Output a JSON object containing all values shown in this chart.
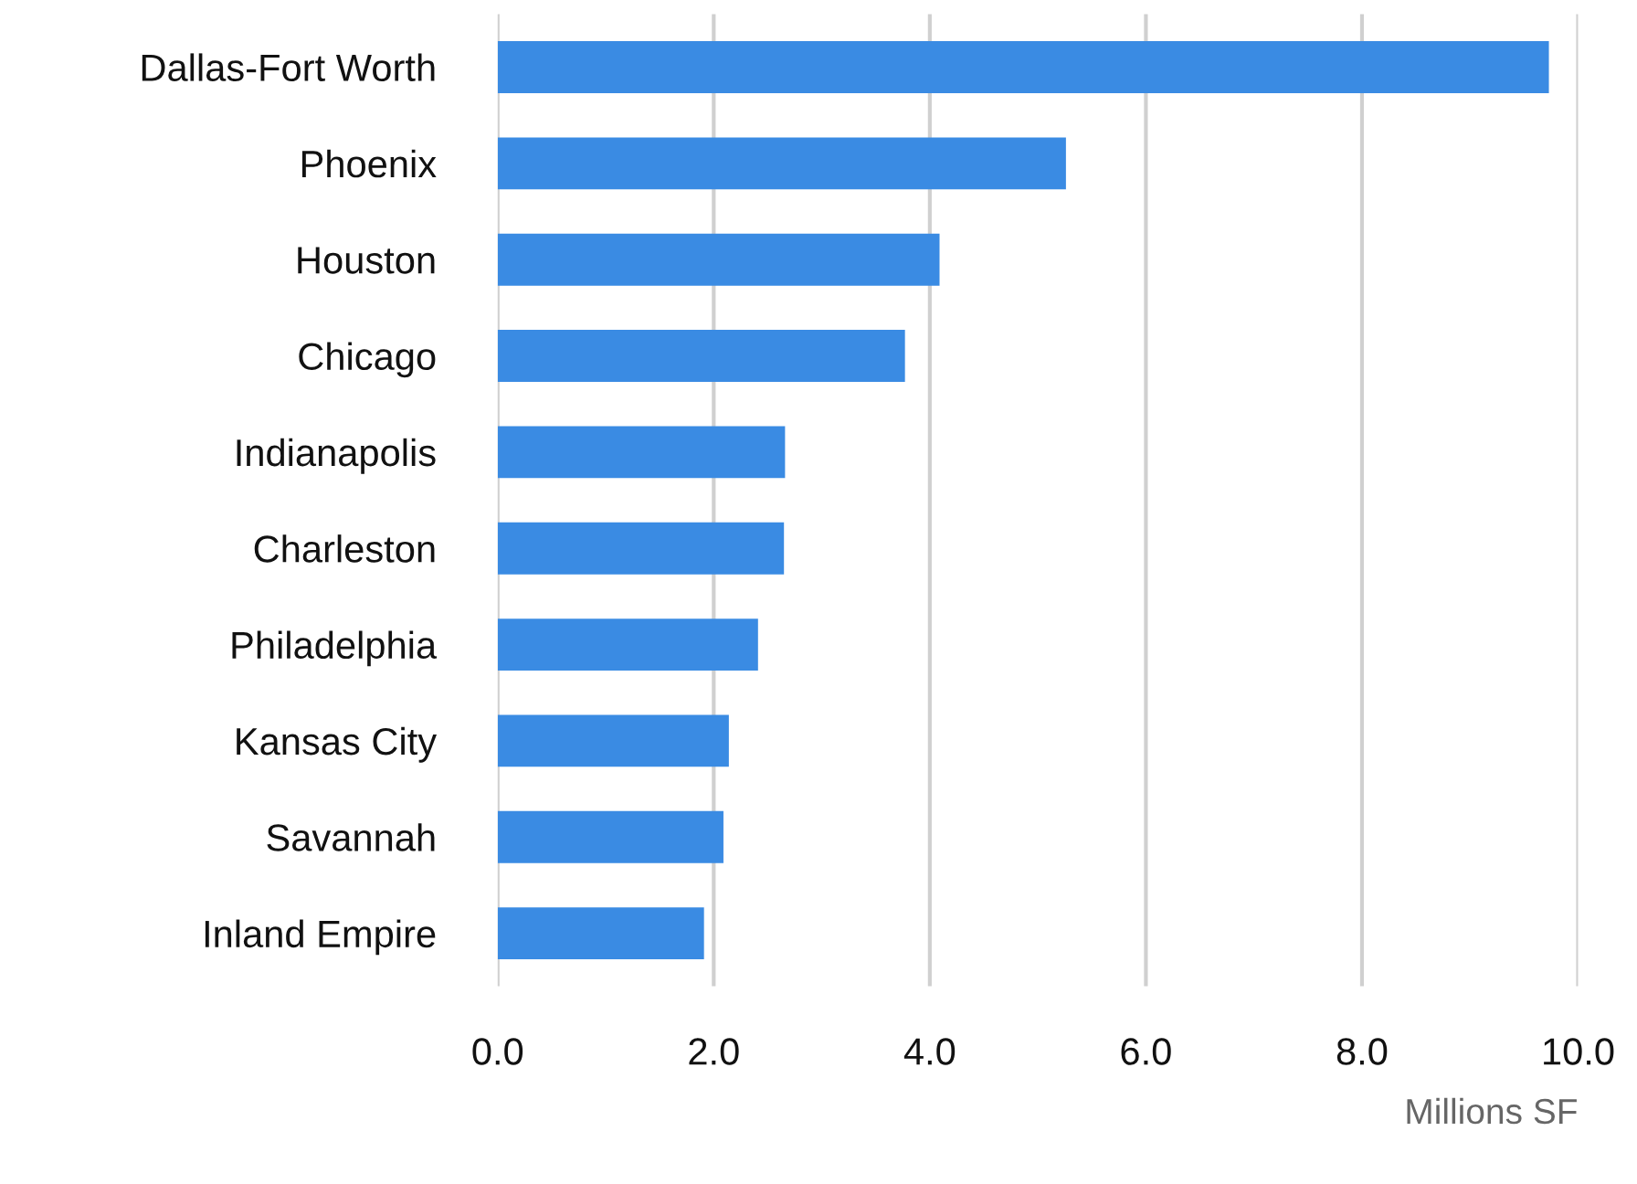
{
  "chart_data": {
    "type": "bar",
    "orientation": "horizontal",
    "xlabel": "Millions SF",
    "categories": [
      "Dallas-Fort Worth",
      "Phoenix",
      "Houston",
      "Chicago",
      "Indianapolis",
      "Charleston",
      "Philadelphia",
      "Kansas City",
      "Savannah",
      "Inland Empire"
    ],
    "values": [
      9.73,
      5.26,
      4.09,
      3.77,
      2.66,
      2.65,
      2.41,
      2.14,
      2.09,
      1.91
    ],
    "color": "#3a8be3",
    "xlim": [
      0,
      10
    ],
    "xticks": [
      {
        "value": 0,
        "label": "0.0"
      },
      {
        "value": 2,
        "label": "2.0"
      },
      {
        "value": 4,
        "label": "4.0"
      },
      {
        "value": 6,
        "label": "6.0"
      },
      {
        "value": 8,
        "label": "8.0"
      },
      {
        "value": 10,
        "label": "10.0"
      }
    ],
    "grid": "x"
  }
}
